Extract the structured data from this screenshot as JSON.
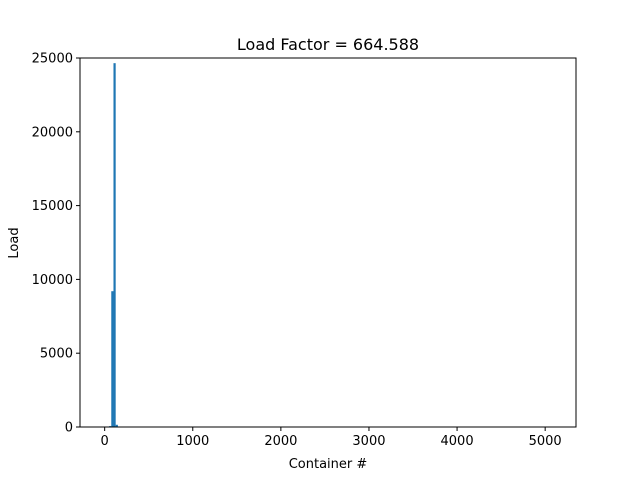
{
  "chart_data": {
    "type": "bar",
    "title": "Load Factor = 664.588",
    "xlabel": "Container #",
    "ylabel": "Load",
    "xlim": [
      -280,
      5350
    ],
    "ylim": [
      0,
      25000
    ],
    "x_ticks": [
      0,
      1000,
      2000,
      3000,
      4000,
      5000
    ],
    "y_ticks": [
      0,
      5000,
      10000,
      15000,
      20000,
      25000
    ],
    "grid": false,
    "legend": "none",
    "bar_color": "#1f77b4",
    "bars": [
      {
        "x": 50,
        "width": 25,
        "value": 60
      },
      {
        "x": 75,
        "width": 25,
        "value": 9200
      },
      {
        "x": 100,
        "width": 25,
        "value": 24650
      },
      {
        "x": 125,
        "width": 25,
        "value": 150
      }
    ]
  }
}
